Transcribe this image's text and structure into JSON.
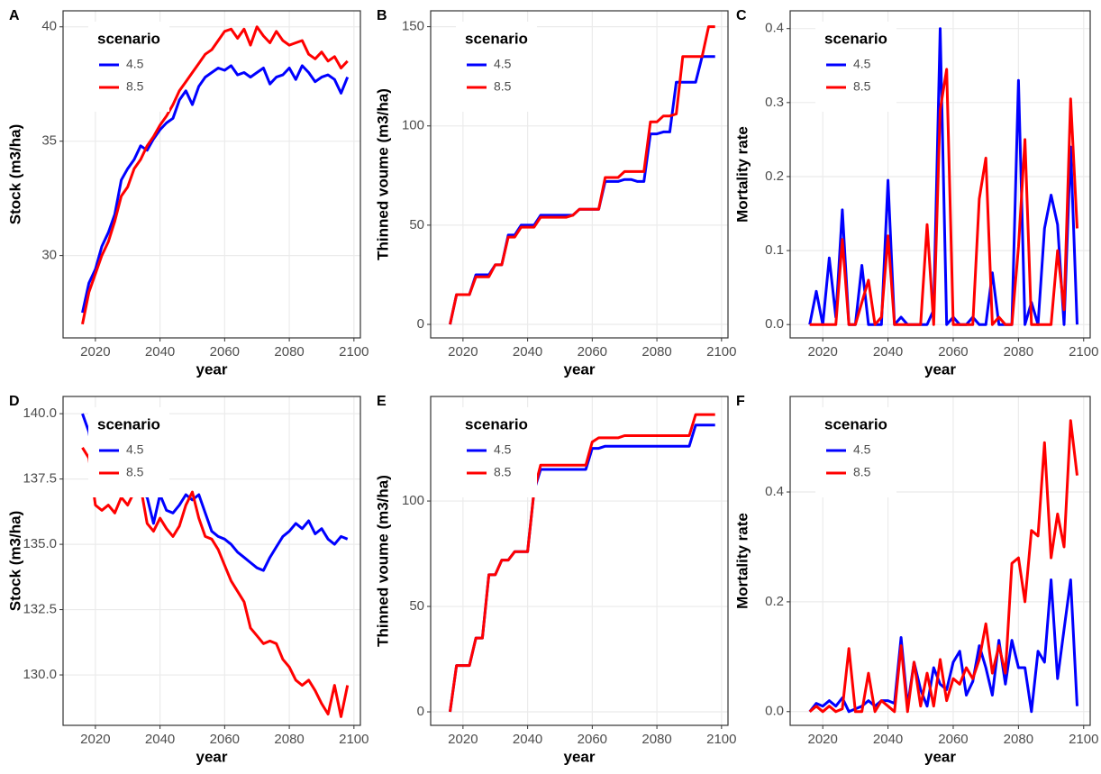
{
  "chart_data": [
    {
      "type": "line",
      "label": "A",
      "y_label": "Stock (m3/ha)",
      "x_label": "year",
      "legend_title": "scenario",
      "grid": true,
      "x": [
        2016,
        2018,
        2020,
        2022,
        2024,
        2026,
        2028,
        2030,
        2032,
        2034,
        2036,
        2038,
        2040,
        2042,
        2044,
        2046,
        2048,
        2050,
        2052,
        2054,
        2056,
        2058,
        2060,
        2062,
        2064,
        2066,
        2068,
        2070,
        2072,
        2074,
        2076,
        2078,
        2080,
        2082,
        2084,
        2086,
        2088,
        2090,
        2092,
        2094,
        2096,
        2098
      ],
      "xlim": [
        2010,
        2102
      ],
      "xticks": [
        2020,
        2040,
        2060,
        2080,
        2100
      ],
      "ylim": [
        26.4,
        40.7
      ],
      "yticks": [
        30,
        35,
        40
      ],
      "series": [
        {
          "name": "4.5",
          "color": "#0000ff",
          "values": [
            27.5,
            28.8,
            29.4,
            30.4,
            31.0,
            31.8,
            33.3,
            33.8,
            34.2,
            34.8,
            34.6,
            35.1,
            35.5,
            35.8,
            36.0,
            36.8,
            37.2,
            36.6,
            37.4,
            37.8,
            38.0,
            38.2,
            38.1,
            38.3,
            37.9,
            38.0,
            37.8,
            38.0,
            38.2,
            37.5,
            37.8,
            37.9,
            38.2,
            37.7,
            38.3,
            38.0,
            37.6,
            37.8,
            37.9,
            37.7,
            37.1,
            37.8
          ]
        },
        {
          "name": "8.5",
          "color": "#ff0000",
          "values": [
            27.0,
            28.4,
            29.2,
            30.0,
            30.6,
            31.5,
            32.6,
            33.0,
            33.8,
            34.2,
            34.8,
            35.2,
            35.7,
            36.1,
            36.6,
            37.2,
            37.6,
            38.0,
            38.4,
            38.8,
            39.0,
            39.4,
            39.8,
            39.9,
            39.5,
            39.9,
            39.2,
            40.0,
            39.6,
            39.3,
            39.8,
            39.4,
            39.2,
            39.3,
            39.4,
            38.8,
            38.6,
            38.9,
            38.5,
            38.7,
            38.2,
            38.5
          ]
        }
      ]
    },
    {
      "type": "line",
      "label": "B",
      "y_label": "Thinned voume (m3/ha)",
      "x_label": "year",
      "legend_title": "scenario",
      "grid": true,
      "x": [
        2016,
        2018,
        2020,
        2022,
        2024,
        2026,
        2028,
        2030,
        2032,
        2034,
        2036,
        2038,
        2040,
        2042,
        2044,
        2046,
        2048,
        2050,
        2052,
        2054,
        2056,
        2058,
        2060,
        2062,
        2064,
        2066,
        2068,
        2070,
        2072,
        2074,
        2076,
        2078,
        2080,
        2082,
        2084,
        2086,
        2088,
        2090,
        2092,
        2094,
        2096,
        2098
      ],
      "xlim": [
        2010,
        2102
      ],
      "xticks": [
        2020,
        2040,
        2060,
        2080,
        2100
      ],
      "ylim": [
        -6.8,
        158
      ],
      "yticks": [
        0,
        50,
        100,
        150
      ],
      "series": [
        {
          "name": "4.5",
          "color": "#0000ff",
          "values": [
            0,
            15,
            15,
            15,
            25,
            25,
            25,
            30,
            30,
            45,
            45,
            50,
            50,
            50,
            55,
            55,
            55,
            55,
            55,
            55,
            58,
            58,
            58,
            58,
            72,
            72,
            72,
            73,
            73,
            72,
            72,
            96,
            96,
            97,
            97,
            122,
            122,
            122,
            122,
            135,
            135,
            135
          ]
        },
        {
          "name": "8.5",
          "color": "#ff0000",
          "values": [
            0,
            15,
            15,
            15,
            24,
            24,
            24,
            30,
            30,
            44,
            44,
            49,
            49,
            49,
            54,
            54,
            54,
            54,
            54,
            55,
            58,
            58,
            58,
            58,
            74,
            74,
            74,
            77,
            77,
            77,
            77,
            102,
            102,
            105,
            105,
            106,
            135,
            135,
            135,
            135,
            150,
            150
          ]
        }
      ]
    },
    {
      "type": "line",
      "label": "C",
      "y_label": "Mortality rate",
      "x_label": "year",
      "legend_title": "scenario",
      "grid": true,
      "x": [
        2016,
        2018,
        2020,
        2022,
        2024,
        2026,
        2028,
        2030,
        2032,
        2034,
        2036,
        2038,
        2040,
        2042,
        2044,
        2046,
        2048,
        2050,
        2052,
        2054,
        2056,
        2058,
        2060,
        2062,
        2064,
        2066,
        2068,
        2070,
        2072,
        2074,
        2076,
        2078,
        2080,
        2082,
        2084,
        2086,
        2088,
        2090,
        2092,
        2094,
        2096,
        2098
      ],
      "xlim": [
        2010,
        2102
      ],
      "xticks": [
        2020,
        2040,
        2060,
        2080,
        2100
      ],
      "ylim": [
        -0.018,
        0.424
      ],
      "yticks": [
        {
          "value": 0,
          "label": "0.0"
        },
        0.1,
        0.2,
        0.3,
        0.4
      ],
      "series": [
        {
          "name": "4.5",
          "color": "#0000ff",
          "values": [
            0,
            0.045,
            0,
            0.09,
            0.01,
            0.155,
            0,
            0,
            0.08,
            0,
            0,
            0,
            0.195,
            0,
            0.01,
            0,
            0,
            0,
            0,
            0.02,
            0.4,
            0,
            0.01,
            0,
            0,
            0.01,
            0,
            0,
            0.07,
            0,
            0,
            0,
            0.33,
            0,
            0.03,
            0,
            0.13,
            0.175,
            0.135,
            0,
            0.24,
            0
          ]
        },
        {
          "name": "8.5",
          "color": "#ff0000",
          "values": [
            0,
            0,
            0,
            0,
            0,
            0.115,
            0,
            0,
            0.03,
            0.06,
            0,
            0.01,
            0.12,
            0,
            0,
            0,
            0,
            0,
            0.135,
            0,
            0.29,
            0.345,
            0,
            0,
            0,
            0,
            0.17,
            0.225,
            0,
            0.01,
            0,
            0,
            0.105,
            0.25,
            0,
            0,
            0,
            0,
            0.1,
            0.02,
            0.305,
            0.13
          ]
        }
      ]
    },
    {
      "type": "line",
      "label": "D",
      "y_label": "Stock (m3/ha)",
      "x_label": "year",
      "legend_title": "scenario",
      "grid": true,
      "x": [
        2016,
        2018,
        2020,
        2022,
        2024,
        2026,
        2028,
        2030,
        2032,
        2034,
        2036,
        2038,
        2040,
        2042,
        2044,
        2046,
        2048,
        2050,
        2052,
        2054,
        2056,
        2058,
        2060,
        2062,
        2064,
        2066,
        2068,
        2070,
        2072,
        2074,
        2076,
        2078,
        2080,
        2082,
        2084,
        2086,
        2088,
        2090,
        2092,
        2094,
        2096,
        2098
      ],
      "xlim": [
        2010,
        2102
      ],
      "xticks": [
        2020,
        2040,
        2060,
        2080,
        2100
      ],
      "ylim": [
        128.07,
        140.66
      ],
      "yticks": [
        {
          "value": 130,
          "label": "130.0"
        },
        132.5,
        {
          "value": 135,
          "label": "135.0"
        },
        137.5,
        {
          "value": 140,
          "label": "140.0"
        }
      ],
      "series": [
        {
          "name": "4.5",
          "color": "#0000ff",
          "values": [
            140.0,
            139.3,
            137.8,
            137.5,
            137.0,
            137.0,
            137.0,
            137.0,
            137.0,
            137.0,
            136.8,
            135.8,
            136.9,
            136.3,
            136.2,
            136.5,
            136.9,
            136.7,
            136.9,
            136.2,
            135.5,
            135.3,
            135.2,
            135.0,
            134.7,
            134.5,
            134.3,
            134.1,
            134.0,
            134.5,
            134.9,
            135.3,
            135.5,
            135.8,
            135.6,
            135.9,
            135.4,
            135.6,
            135.2,
            135.0,
            135.3,
            135.2
          ]
        },
        {
          "name": "8.5",
          "color": "#ff0000",
          "values": [
            138.7,
            138.3,
            136.5,
            136.3,
            136.5,
            136.2,
            136.8,
            136.5,
            137.0,
            137.2,
            135.8,
            135.5,
            136.0,
            135.6,
            135.3,
            135.7,
            136.5,
            137.0,
            136.0,
            135.3,
            135.2,
            134.8,
            134.2,
            133.6,
            133.2,
            132.8,
            131.8,
            131.5,
            131.2,
            131.3,
            131.2,
            130.6,
            130.3,
            129.8,
            129.6,
            129.8,
            129.4,
            128.9,
            128.5,
            129.6,
            128.4,
            129.6
          ]
        }
      ]
    },
    {
      "type": "line",
      "label": "E",
      "y_label": "Thinned voume (m3/ha)",
      "x_label": "year",
      "legend_title": "scenario",
      "grid": true,
      "x": [
        2016,
        2018,
        2020,
        2022,
        2024,
        2026,
        2028,
        2030,
        2032,
        2034,
        2036,
        2038,
        2040,
        2042,
        2044,
        2046,
        2048,
        2050,
        2052,
        2054,
        2056,
        2058,
        2060,
        2062,
        2064,
        2066,
        2068,
        2070,
        2072,
        2074,
        2076,
        2078,
        2080,
        2082,
        2084,
        2086,
        2088,
        2090,
        2092,
        2094,
        2096,
        2098
      ],
      "xlim": [
        2010,
        2102
      ],
      "xticks": [
        2020,
        2040,
        2060,
        2080,
        2100
      ],
      "ylim": [
        -6.4,
        149.6
      ],
      "yticks": [
        0,
        50,
        100
      ],
      "series": [
        {
          "name": "4.5",
          "color": "#0000ff",
          "values": [
            0,
            22,
            22,
            22,
            35,
            35,
            65,
            65,
            72,
            72,
            76,
            76,
            76,
            105,
            115,
            115,
            115,
            115,
            115,
            115,
            115,
            115,
            125,
            125,
            126,
            126,
            126,
            126,
            126,
            126,
            126,
            126,
            126,
            126,
            126,
            126,
            126,
            126,
            136,
            136,
            136,
            136
          ]
        },
        {
          "name": "8.5",
          "color": "#ff0000",
          "values": [
            0,
            22,
            22,
            22,
            35,
            35,
            65,
            65,
            72,
            72,
            76,
            76,
            76,
            105,
            117,
            117,
            117,
            117,
            117,
            117,
            117,
            117,
            128,
            130,
            130,
            130,
            130,
            131,
            131,
            131,
            131,
            131,
            131,
            131,
            131,
            131,
            131,
            131,
            141,
            141,
            141,
            141
          ]
        }
      ]
    },
    {
      "type": "line",
      "label": "F",
      "y_label": "Mortality rate",
      "x_label": "year",
      "legend_title": "scenario",
      "grid": true,
      "x": [
        2016,
        2018,
        2020,
        2022,
        2024,
        2026,
        2028,
        2030,
        2032,
        2034,
        2036,
        2038,
        2040,
        2042,
        2044,
        2046,
        2048,
        2050,
        2052,
        2054,
        2056,
        2058,
        2060,
        2062,
        2064,
        2066,
        2068,
        2070,
        2072,
        2074,
        2076,
        2078,
        2080,
        2082,
        2084,
        2086,
        2088,
        2090,
        2092,
        2094,
        2096,
        2098
      ],
      "xlim": [
        2010,
        2102
      ],
      "xticks": [
        2020,
        2040,
        2060,
        2080,
        2100
      ],
      "ylim": [
        -0.025,
        0.574
      ],
      "yticks": [
        {
          "value": 0,
          "label": "0.0"
        },
        0.2,
        0.4
      ],
      "series": [
        {
          "name": "4.5",
          "color": "#0000ff",
          "values": [
            0,
            0.015,
            0.01,
            0.02,
            0.01,
            0.025,
            0,
            0.005,
            0.01,
            0.02,
            0.01,
            0.02,
            0.02,
            0.015,
            0.135,
            0.01,
            0.09,
            0.04,
            0.01,
            0.08,
            0.05,
            0.04,
            0.09,
            0.11,
            0.03,
            0.055,
            0.12,
            0.08,
            0.03,
            0.13,
            0.05,
            0.13,
            0.08,
            0.08,
            0,
            0.11,
            0.09,
            0.24,
            0.06,
            0.15,
            0.24,
            0.01
          ]
        },
        {
          "name": "8.5",
          "color": "#ff0000",
          "values": [
            0,
            0.01,
            0,
            0.01,
            0,
            0.005,
            0.115,
            0,
            0,
            0.07,
            0,
            0.02,
            0.01,
            0,
            0.12,
            0,
            0.09,
            0.01,
            0.07,
            0.01,
            0.095,
            0.02,
            0.06,
            0.05,
            0.08,
            0.06,
            0.095,
            0.16,
            0.07,
            0.12,
            0.07,
            0.27,
            0.28,
            0.2,
            0.33,
            0.32,
            0.49,
            0.28,
            0.36,
            0.3,
            0.53,
            0.43
          ]
        }
      ]
    }
  ]
}
